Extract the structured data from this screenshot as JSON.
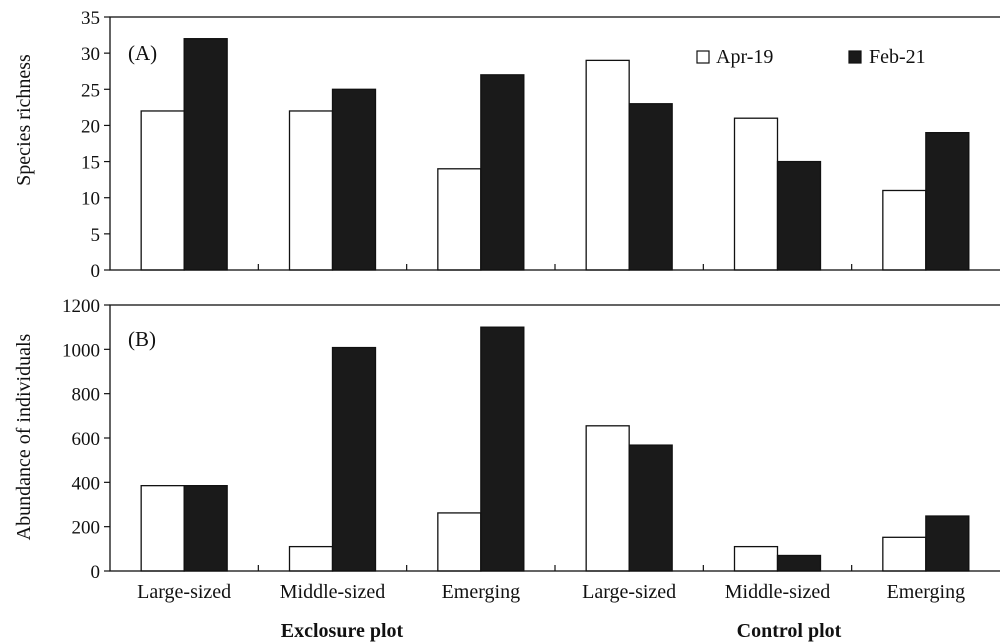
{
  "chart_data": [
    {
      "type": "bar",
      "panel_label": "(A)",
      "ylabel": "Species richness",
      "ylim": [
        0,
        35
      ],
      "yticks": [
        "0",
        "5",
        "10",
        "15",
        "20",
        "25",
        "30",
        "35"
      ],
      "categories": [
        "Large-sized",
        "Middle-sized",
        "Emerging",
        "Large-sized",
        "Middle-sized",
        "Emerging"
      ],
      "series": [
        {
          "name": "Apr-19",
          "color": "#ffffff",
          "values": [
            22,
            22,
            14,
            29,
            21,
            11
          ]
        },
        {
          "name": "Feb-21",
          "color": "#1a1a1a",
          "values": [
            32,
            25,
            27,
            23,
            15,
            19
          ]
        }
      ],
      "legend_position": "top-right"
    },
    {
      "type": "bar",
      "panel_label": "(B)",
      "ylabel": "Abundance of individuals",
      "ylim": [
        0,
        1200
      ],
      "yticks": [
        "0",
        "200",
        "400",
        "600",
        "800",
        "1000",
        "1200"
      ],
      "categories": [
        "Large-sized",
        "Middle-sized",
        "Emerging",
        "Large-sized",
        "Middle-sized",
        "Emerging"
      ],
      "series": [
        {
          "name": "Apr-19",
          "color": "#ffffff",
          "values": [
            385,
            110,
            262,
            655,
            110,
            152
          ]
        },
        {
          "name": "Feb-21",
          "color": "#1a1a1a",
          "values": [
            385,
            1008,
            1100,
            568,
            70,
            248
          ]
        }
      ]
    }
  ],
  "group_labels": [
    "Exclosure plot",
    "Control plot"
  ]
}
